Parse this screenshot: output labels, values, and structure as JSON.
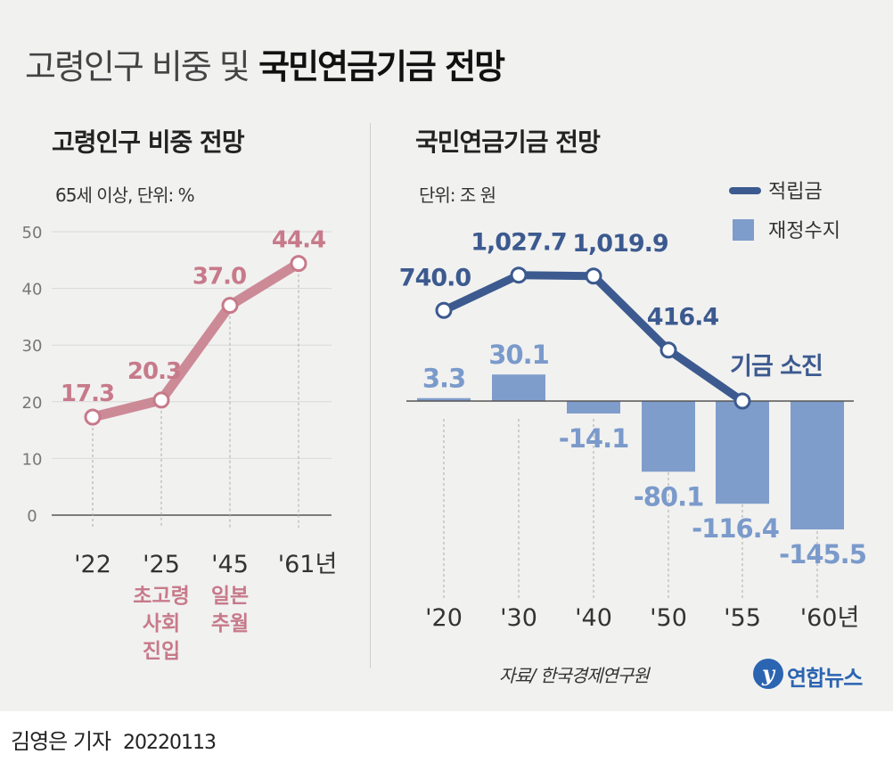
{
  "title": {
    "light": "고령인구 비중 및",
    "bold": "국민연금기금 전망"
  },
  "left_panel": {
    "title": "고령인구 비중 전망",
    "subtitle": "65세 이상, 단위: %"
  },
  "right_panel": {
    "title": "국민연금기금 전망",
    "subtitle": "단위: 조 원"
  },
  "source": "자료/ 한국경제연구원",
  "logo_text": "연합뉴스",
  "logo_mark": "y",
  "byline": {
    "name": "김영은 기자",
    "date": "20220113"
  },
  "colors": {
    "pink": "#cc8a97",
    "pink_dark": "#c77a8a",
    "navy": "#3c5a8f",
    "bar": "#7f9dcb",
    "bar_label": "#7a9acb",
    "grid": "#d9d9d9",
    "axis": "#555555"
  },
  "chart_data": [
    {
      "type": "line",
      "title": "고령인구 비중 전망",
      "unit": "65세 이상, 단위: %",
      "categories": [
        "'22",
        "'25",
        "'45",
        "'61년"
      ],
      "values": [
        17.3,
        20.3,
        37.0,
        44.4
      ],
      "value_labels": [
        "17.3",
        "20.3",
        "37.0",
        "44.4"
      ],
      "ylim": [
        0,
        50
      ],
      "yticks": [
        0,
        10,
        20,
        30,
        40,
        50
      ],
      "grid": true,
      "annotations": [
        {
          "category": "'25",
          "lines": [
            "초고령",
            "사회",
            "진입"
          ]
        },
        {
          "category": "'45",
          "lines": [
            "일본",
            "추월"
          ]
        }
      ]
    },
    {
      "type": "bar+line",
      "title": "국민연금기금 전망",
      "unit": "단위: 조 원",
      "categories": [
        "'20",
        "'30",
        "'40",
        "'50",
        "'55",
        "'60년"
      ],
      "legend": [
        "적립금",
        "재정수지"
      ],
      "legend_position": "top-right",
      "line": {
        "name": "적립금",
        "values": [
          740.0,
          1027.7,
          1019.9,
          416.4,
          0
        ],
        "value_labels": [
          "740.0",
          "1,027.7",
          "1,019.9",
          "416.4",
          "기금 소진"
        ]
      },
      "bars": {
        "name": "재정수지",
        "values": [
          3.3,
          30.1,
          -14.1,
          -80.1,
          -116.4,
          -145.5
        ],
        "value_labels": [
          "3.3",
          "30.1",
          "-14.1",
          "-80.1",
          "-116.4",
          "-145.5"
        ]
      }
    }
  ]
}
